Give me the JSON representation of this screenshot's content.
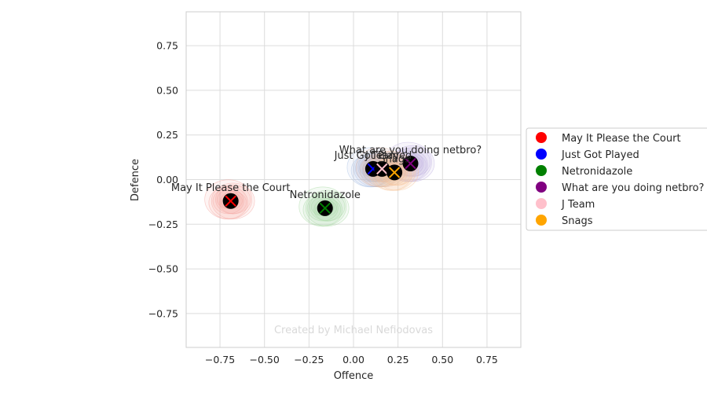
{
  "chart_data": {
    "type": "scatter",
    "xlabel": "Offence",
    "ylabel": "Defence",
    "xlim": [
      -0.94,
      0.94
    ],
    "ylim": [
      -0.94,
      0.94
    ],
    "xticks": [
      "−0.75",
      "−0.50",
      "−0.25",
      "0.00",
      "0.25",
      "0.50",
      "0.75"
    ],
    "xtick_values": [
      -0.75,
      -0.5,
      -0.25,
      0,
      0.25,
      0.5,
      0.75
    ],
    "yticks": [
      "0.75",
      "0.50",
      "0.25",
      "0.00",
      "−0.25",
      "−0.50",
      "−0.75"
    ],
    "ytick_values": [
      0.75,
      0.5,
      0.25,
      0,
      -0.25,
      -0.5,
      -0.75
    ],
    "grid": true,
    "legend_position": "right",
    "watermark": "Created by Michael Nefiodovas",
    "series": [
      {
        "name": "May It Please the Court",
        "color": "#ff0000",
        "x": -0.69,
        "y": -0.12,
        "label": "May It Please the Court",
        "shade": "#f4a6a0"
      },
      {
        "name": "Just Got Played",
        "color": "#0000ff",
        "x": 0.11,
        "y": 0.06,
        "label": "Just Got Played",
        "shade": "#a9c1e4"
      },
      {
        "name": "Netronidazole",
        "color": "#008000",
        "x": -0.16,
        "y": -0.16,
        "label": "Netronidazole",
        "shade": "#a7d8a2"
      },
      {
        "name": "What are you doing netbro?",
        "color": "#800080",
        "x": 0.32,
        "y": 0.09,
        "label": "What are you doing netbro?",
        "shade": "#bdaee0"
      },
      {
        "name": "J Team",
        "color": "#ffc0cb",
        "x": 0.16,
        "y": 0.06,
        "label": "J Team",
        "shade": "#d9b5a5"
      },
      {
        "name": "Snags",
        "color": "#ffa500",
        "x": 0.23,
        "y": 0.04,
        "label": "Snags",
        "shade": "#f5c49a"
      }
    ]
  },
  "legend_labels": {
    "item0": "May It Please the Court",
    "item1": "Just Got Played",
    "item2": "Netronidazole",
    "item3": "What are you doing netbro?",
    "item4": "J Team",
    "item5": "Snags"
  }
}
